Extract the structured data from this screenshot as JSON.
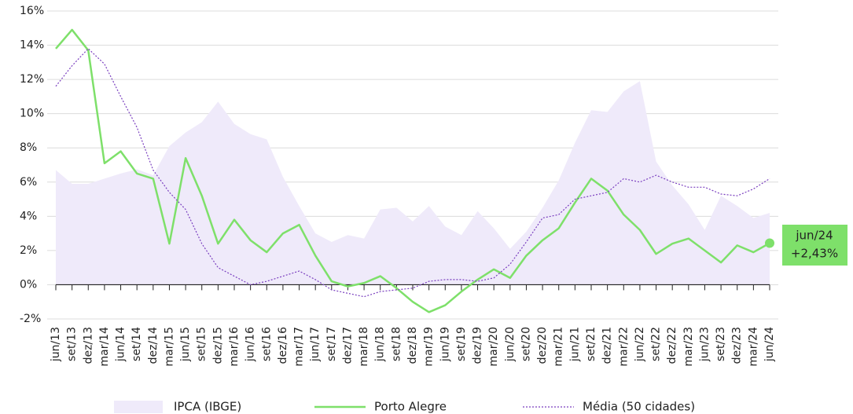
{
  "chart_data": {
    "type": "line",
    "categories": [
      "jun/13",
      "set/13",
      "dez/13",
      "mar/14",
      "jun/14",
      "set/14",
      "dez/14",
      "mar/15",
      "jun/15",
      "set/15",
      "dez/15",
      "mar/16",
      "jun/16",
      "set/16",
      "dez/16",
      "mar/17",
      "jun/17",
      "set/17",
      "dez/17",
      "mar/18",
      "jun/18",
      "set/18",
      "dez/18",
      "mar/19",
      "jun/19",
      "set/19",
      "dez/19",
      "mar/20",
      "jun/20",
      "set/20",
      "dez/20",
      "mar/21",
      "jun/21",
      "set/21",
      "dez/21",
      "mar/22",
      "jun/22",
      "set/22",
      "dez/22",
      "mar/23",
      "jun/23",
      "set/23",
      "dez/23",
      "mar/24",
      "jun/24"
    ],
    "series": [
      {
        "name": "IPCA (IBGE)",
        "style": "area",
        "color": "#efeafa",
        "values": [
          6.7,
          5.9,
          5.9,
          6.2,
          6.5,
          6.75,
          6.4,
          8.1,
          8.9,
          9.5,
          10.7,
          9.4,
          8.8,
          8.5,
          6.3,
          4.6,
          3.0,
          2.5,
          2.9,
          2.7,
          4.4,
          4.5,
          3.7,
          4.6,
          3.4,
          2.9,
          4.3,
          3.3,
          2.1,
          3.1,
          4.5,
          6.1,
          8.3,
          10.2,
          10.1,
          11.3,
          11.9,
          7.2,
          5.8,
          4.7,
          3.2,
          5.2,
          4.6,
          3.9,
          4.2
        ]
      },
      {
        "name": "Porto Alegre",
        "style": "line",
        "color": "#7ee06a",
        "values": [
          13.8,
          14.9,
          13.7,
          7.1,
          7.8,
          6.5,
          6.2,
          2.4,
          7.4,
          5.2,
          2.4,
          3.8,
          2.6,
          1.9,
          3.0,
          3.5,
          1.7,
          0.2,
          -0.1,
          0.1,
          0.5,
          -0.2,
          -1.0,
          -1.6,
          -1.2,
          -0.4,
          0.3,
          0.9,
          0.4,
          1.7,
          2.6,
          3.3,
          4.8,
          6.2,
          5.5,
          4.1,
          3.2,
          1.8,
          2.4,
          2.7,
          2.0,
          1.3,
          2.3,
          1.9,
          2.43
        ]
      },
      {
        "name": "Média (50 cidades)",
        "style": "dotted",
        "color": "#7a3fbf",
        "values": [
          11.6,
          12.8,
          13.8,
          12.9,
          11.0,
          9.2,
          6.7,
          5.4,
          4.4,
          2.4,
          1.0,
          0.5,
          0.0,
          0.2,
          0.5,
          0.8,
          0.3,
          -0.3,
          -0.5,
          -0.7,
          -0.4,
          -0.3,
          -0.2,
          0.2,
          0.3,
          0.3,
          0.2,
          0.4,
          1.2,
          2.5,
          3.9,
          4.1,
          5.0,
          5.2,
          5.4,
          6.2,
          6.0,
          6.4,
          6.0,
          5.7,
          5.7,
          5.3,
          5.2,
          5.6,
          6.2
        ]
      }
    ],
    "annotation": {
      "x_label": "jun/24",
      "text": "+2,43%",
      "color": "#7ee06a"
    },
    "ylim": [
      -2,
      16
    ],
    "yticks": [
      {
        "value": -2,
        "label": "-2%"
      },
      {
        "value": 0,
        "label": "0%"
      },
      {
        "value": 2,
        "label": "2%"
      },
      {
        "value": 4,
        "label": "4%"
      },
      {
        "value": 6,
        "label": "6%"
      },
      {
        "value": 8,
        "label": "8%"
      },
      {
        "value": 10,
        "label": "10%"
      },
      {
        "value": 12,
        "label": "12%"
      },
      {
        "value": 14,
        "label": "14%"
      },
      {
        "value": 16,
        "label": "16%"
      }
    ],
    "grid": true,
    "legend": "bottom"
  }
}
